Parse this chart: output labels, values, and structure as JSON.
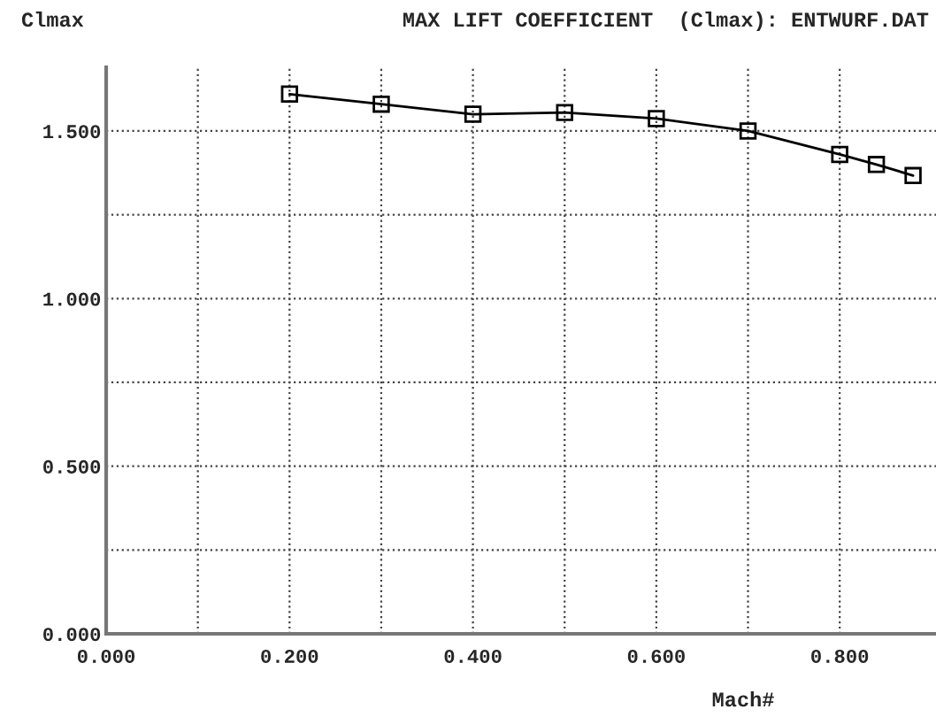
{
  "chart_data": {
    "type": "line",
    "title": "MAX LIFT COEFFICIENT  (Clmax): ENTWURF.DAT",
    "xlabel": "Mach#",
    "ylabel": "Clmax",
    "x": [
      0.2,
      0.3,
      0.4,
      0.5,
      0.6,
      0.7,
      0.8,
      0.84,
      0.88
    ],
    "series": [
      {
        "color": "#000000",
        "values": [
          1.61,
          1.58,
          1.55,
          1.555,
          1.537,
          1.5,
          1.43,
          1.4,
          1.367
        ]
      }
    ],
    "marker": "square",
    "line_style": "solid",
    "grid": true,
    "legend": false,
    "xlim": [
      0,
      0.905
    ],
    "ylim": [
      0,
      1.69
    ],
    "xticks": [
      {
        "value": 0,
        "label": "0.000"
      },
      {
        "value": 0.1,
        "label": null
      },
      {
        "value": 0.2,
        "label": "0.200"
      },
      {
        "value": 0.3,
        "label": null
      },
      {
        "value": 0.4,
        "label": "0.400"
      },
      {
        "value": 0.5,
        "label": null
      },
      {
        "value": 0.6,
        "label": "0.600"
      },
      {
        "value": 0.7,
        "label": null
      },
      {
        "value": 0.8,
        "label": "0.800"
      }
    ],
    "yticks": [
      {
        "value": 0,
        "label": "0.000"
      },
      {
        "value": 0.25,
        "label": null
      },
      {
        "value": 0.5,
        "label": "0.500"
      },
      {
        "value": 0.75,
        "label": null
      },
      {
        "value": 1,
        "label": "1.000"
      },
      {
        "value": 1.25,
        "label": null
      },
      {
        "value": 1.5,
        "label": "1.500"
      }
    ]
  }
}
